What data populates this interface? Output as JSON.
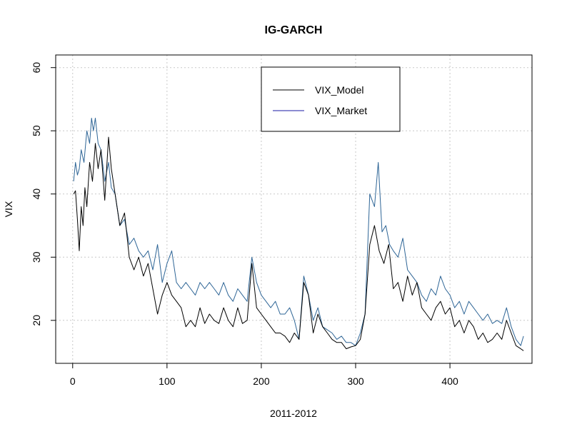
{
  "chart_data": {
    "type": "line",
    "title": "IG-GARCH",
    "xlabel": "2011-2012",
    "ylabel": "VIX",
    "xlim": [
      -18,
      487
    ],
    "ylim": [
      13.2,
      62
    ],
    "xticks": [
      0,
      100,
      200,
      300,
      400
    ],
    "yticks": [
      20,
      30,
      40,
      50,
      60
    ],
    "grid": true,
    "legend_position": "top-center",
    "series": [
      {
        "name": "VIX_Model",
        "color": "#000000",
        "x": [
          1,
          3,
          5,
          7,
          9,
          11,
          13,
          15,
          18,
          21,
          24,
          27,
          30,
          34,
          38,
          41,
          45,
          50,
          55,
          60,
          65,
          70,
          75,
          80,
          85,
          90,
          95,
          100,
          105,
          110,
          115,
          120,
          125,
          130,
          135,
          140,
          145,
          150,
          155,
          160,
          165,
          170,
          175,
          180,
          185,
          190,
          195,
          200,
          205,
          210,
          215,
          220,
          225,
          230,
          235,
          240,
          245,
          250,
          255,
          260,
          265,
          270,
          275,
          280,
          285,
          290,
          295,
          300,
          305,
          310,
          315,
          320,
          325,
          330,
          335,
          340,
          345,
          350,
          355,
          360,
          365,
          370,
          375,
          380,
          385,
          390,
          395,
          400,
          405,
          410,
          415,
          420,
          425,
          430,
          435,
          440,
          445,
          450,
          455,
          460,
          465,
          470,
          475,
          478
        ],
        "y": [
          40,
          40.5,
          36,
          31,
          38,
          35,
          41,
          38,
          45,
          42,
          48,
          44,
          47,
          39,
          49,
          44,
          40,
          35,
          37,
          30,
          28,
          30,
          27,
          29,
          25,
          21,
          24,
          26,
          24,
          23,
          22,
          19,
          20,
          19,
          22,
          19.5,
          21,
          20,
          19.5,
          22,
          20,
          19,
          22,
          19.5,
          20,
          29,
          22,
          21,
          20,
          19,
          18,
          18,
          17.5,
          16.5,
          18,
          17,
          26,
          24,
          18,
          21,
          19,
          18,
          17,
          16.5,
          16.5,
          15.5,
          15.8,
          16,
          17,
          21,
          32,
          35,
          31,
          29,
          32,
          25,
          26,
          23,
          27,
          24,
          26,
          22,
          21,
          20,
          22,
          23,
          21,
          22,
          19,
          20,
          18,
          20,
          19,
          17,
          18,
          16.5,
          17,
          18,
          17,
          20,
          18,
          16,
          15.5,
          15.2
        ]
      },
      {
        "name": "VIX_Market",
        "color": "#2e6596",
        "x": [
          1,
          3,
          5,
          7,
          9,
          12,
          15,
          18,
          20,
          22,
          24,
          27,
          30,
          34,
          38,
          41,
          45,
          50,
          55,
          60,
          65,
          70,
          75,
          80,
          85,
          90,
          95,
          100,
          105,
          110,
          115,
          120,
          125,
          130,
          135,
          140,
          145,
          150,
          155,
          160,
          165,
          170,
          175,
          180,
          185,
          190,
          195,
          200,
          205,
          210,
          215,
          220,
          225,
          230,
          235,
          240,
          245,
          250,
          255,
          260,
          265,
          270,
          275,
          280,
          285,
          290,
          295,
          300,
          305,
          310,
          315,
          320,
          324,
          328,
          332,
          336,
          340,
          345,
          350,
          355,
          360,
          365,
          370,
          375,
          380,
          385,
          390,
          395,
          400,
          405,
          410,
          415,
          420,
          425,
          430,
          435,
          440,
          445,
          450,
          455,
          460,
          465,
          470,
          475,
          478
        ],
        "y": [
          42,
          45,
          43,
          44,
          47,
          45,
          50,
          48,
          52,
          50,
          52,
          48,
          47,
          42,
          45,
          41,
          40,
          35,
          36,
          32,
          33,
          31,
          30,
          31,
          28,
          32,
          26,
          29,
          31,
          26,
          25,
          26,
          25,
          24,
          26,
          25,
          26,
          25,
          24,
          26,
          24,
          23,
          25,
          24,
          23,
          30,
          26,
          24,
          23,
          22,
          23,
          21,
          21,
          22,
          20,
          17,
          27,
          24,
          20,
          22,
          19,
          18.5,
          18,
          17,
          17.5,
          16.5,
          16.5,
          16,
          18,
          21,
          40,
          38,
          45,
          34,
          35,
          32,
          31,
          30,
          33,
          28,
          27,
          26,
          24,
          23,
          25,
          24,
          27,
          25,
          24,
          22,
          23,
          21,
          23,
          22,
          21,
          20,
          21,
          19.5,
          20,
          19.5,
          22,
          19,
          17,
          16,
          17.5
        ]
      }
    ]
  }
}
